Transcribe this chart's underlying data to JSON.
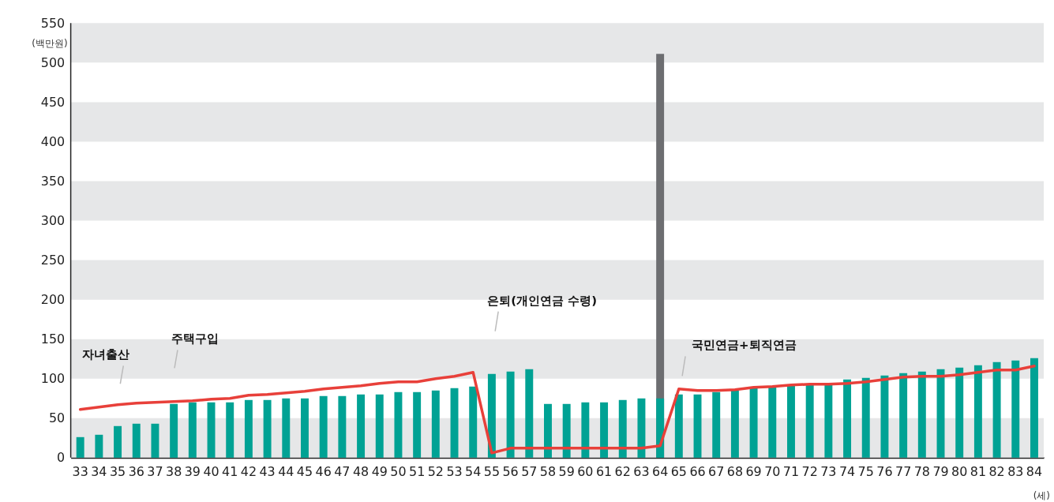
{
  "chart_data": {
    "type": "bar",
    "ylabel": "(백만원)",
    "xlabel": "(세)",
    "categories": [
      "33",
      "34",
      "35",
      "36",
      "37",
      "38",
      "39",
      "40",
      "41",
      "42",
      "43",
      "44",
      "45",
      "46",
      "47",
      "48",
      "49",
      "50",
      "51",
      "52",
      "53",
      "54",
      "55",
      "56",
      "57",
      "58",
      "59",
      "60",
      "61",
      "62",
      "63",
      "64",
      "65",
      "66",
      "67",
      "68",
      "69",
      "70",
      "71",
      "72",
      "73",
      "74",
      "75",
      "76",
      "77",
      "78",
      "79",
      "80",
      "81",
      "82",
      "83",
      "84"
    ],
    "series": [
      {
        "color": "#6d6e71",
        "values": [
          null,
          null,
          null,
          null,
          null,
          null,
          null,
          null,
          null,
          null,
          null,
          null,
          null,
          null,
          null,
          null,
          null,
          null,
          null,
          null,
          null,
          null,
          null,
          null,
          null,
          null,
          null,
          null,
          null,
          null,
          null,
          511,
          null,
          null,
          null,
          null,
          null,
          null,
          null,
          null,
          null,
          null,
          null,
          null,
          null,
          null,
          null,
          null,
          null,
          null,
          null,
          null
        ]
      },
      {
        "color": "#00a294",
        "values": [
          26,
          29,
          40,
          43,
          43,
          68,
          70,
          70,
          70,
          73,
          73,
          75,
          75,
          78,
          78,
          80,
          80,
          83,
          83,
          85,
          88,
          90,
          106,
          109,
          112,
          68,
          68,
          70,
          70,
          73,
          75,
          75,
          80,
          80,
          83,
          85,
          88,
          90,
          92,
          92,
          94,
          99,
          101,
          104,
          107,
          109,
          112,
          114,
          117,
          121,
          123,
          126
        ]
      },
      {
        "type": "line",
        "color": "#e8403a",
        "values": [
          61,
          64,
          67,
          69,
          70,
          71,
          72,
          74,
          75,
          79,
          80,
          82,
          84,
          87,
          89,
          91,
          94,
          96,
          96,
          100,
          103,
          108,
          6,
          12,
          12,
          12,
          12,
          12,
          12,
          12,
          12,
          15,
          87,
          85,
          85,
          86,
          89,
          90,
          92,
          93,
          93,
          94,
          96,
          99,
          102,
          103,
          103,
          105,
          108,
          111,
          111,
          116
        ]
      }
    ],
    "ylim": [
      0,
      550
    ],
    "yticks": [
      0,
      50,
      100,
      150,
      200,
      250,
      300,
      350,
      400,
      450,
      500,
      550
    ],
    "annotations": [
      "자녀출산",
      "주택구입",
      "은퇴(개인연금 수령)",
      "국민연금+퇴직연금"
    ]
  }
}
